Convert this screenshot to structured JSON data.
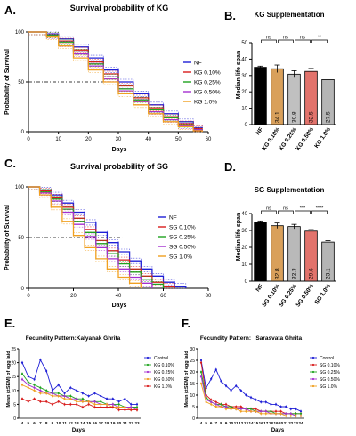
{
  "figure": {
    "background": "#ffffff"
  },
  "chart_data": [
    {
      "id": "A",
      "panel_label": "A.",
      "type": "line",
      "title": "Survival probability of KG",
      "xlabel": "Days",
      "ylabel": "Probability of Survival",
      "xlim": [
        0,
        60
      ],
      "ylim": [
        0,
        100
      ],
      "xticks": [
        "0",
        "10",
        "20",
        "30",
        "40",
        "50",
        "60"
      ],
      "yticks": [
        "0",
        "50",
        "100"
      ],
      "reference_line": 50,
      "legend": "right",
      "series": [
        {
          "name": "NF",
          "color": "#1f1fd6",
          "x": [
            0,
            6,
            10,
            15,
            20,
            25,
            30,
            35,
            40,
            45,
            50,
            55,
            58
          ],
          "y": [
            100,
            98,
            93,
            85,
            74,
            62,
            50,
            38,
            27,
            18,
            10,
            4,
            0
          ]
        },
        {
          "name": "KG 0.10%",
          "color": "#d81b1b",
          "x": [
            0,
            6,
            10,
            15,
            20,
            25,
            30,
            35,
            40,
            45,
            50,
            55,
            58
          ],
          "y": [
            100,
            97,
            91,
            82,
            70,
            58,
            46,
            34,
            24,
            15,
            8,
            3,
            0
          ]
        },
        {
          "name": "KG 0.25%",
          "color": "#1fa31f",
          "x": [
            0,
            6,
            10,
            15,
            20,
            25,
            30,
            35,
            40,
            45,
            50,
            55,
            58
          ],
          "y": [
            100,
            97,
            90,
            80,
            68,
            55,
            43,
            32,
            22,
            14,
            7,
            2,
            0
          ]
        },
        {
          "name": "KG 0.50%",
          "color": "#a42fd0",
          "x": [
            0,
            6,
            10,
            15,
            20,
            25,
            30,
            35,
            40,
            45,
            50,
            55,
            58
          ],
          "y": [
            100,
            96,
            88,
            78,
            66,
            53,
            41,
            30,
            20,
            12,
            6,
            2,
            0
          ]
        },
        {
          "name": "KG 1.0%",
          "color": "#f0a020",
          "x": [
            0,
            6,
            10,
            15,
            20,
            25,
            30,
            35,
            40,
            45,
            50,
            55,
            58
          ],
          "y": [
            100,
            95,
            86,
            74,
            62,
            50,
            38,
            27,
            18,
            10,
            5,
            1,
            0
          ]
        }
      ]
    },
    {
      "id": "B",
      "panel_label": "B.",
      "type": "bar",
      "title": "KG Supplementation",
      "ylabel": "Median life span",
      "ylim": [
        0,
        50
      ],
      "yticks": [
        "0",
        "10",
        "20",
        "30",
        "40",
        "50"
      ],
      "categories": [
        "NF",
        "KG 0.10%",
        "KG 0.25%",
        "KG 0.50%",
        "KG 1.0%"
      ],
      "values": [
        35.0,
        34.1,
        30.8,
        32.5,
        27.5
      ],
      "value_labels": [
        "35.0",
        "34.1",
        "30.8",
        "32.5",
        "27.5"
      ],
      "errors": [
        0.7,
        2.3,
        2.1,
        1.8,
        1.6
      ],
      "colors": [
        "#000000",
        "#d9a05b",
        "#c0c0c0",
        "#e2736c",
        "#b5b5b5"
      ],
      "significance": [
        "ns",
        "ns",
        "ns",
        "**"
      ]
    },
    {
      "id": "C",
      "panel_label": "C.",
      "type": "line",
      "title": "Survival probability of SG",
      "xlabel": "Days",
      "ylabel": "Probability of Survival",
      "xlim": [
        0,
        80
      ],
      "ylim": [
        0,
        100
      ],
      "xticks": [
        "0",
        "20",
        "40",
        "60",
        "80"
      ],
      "yticks": [
        "0",
        "50",
        "100"
      ],
      "reference_line": 50,
      "legend": "right",
      "series": [
        {
          "name": "NF",
          "color": "#1f1fd6",
          "x": [
            0,
            5,
            10,
            15,
            20,
            25,
            30,
            35,
            40,
            45,
            50,
            55,
            60,
            65,
            70
          ],
          "y": [
            100,
            97,
            92,
            84,
            75,
            65,
            55,
            45,
            36,
            27,
            19,
            12,
            6,
            2,
            0
          ]
        },
        {
          "name": "SG 0.10%",
          "color": "#d81b1b",
          "x": [
            0,
            5,
            10,
            15,
            20,
            25,
            30,
            35,
            40,
            45,
            50,
            55,
            60,
            65
          ],
          "y": [
            100,
            96,
            90,
            80,
            69,
            58,
            47,
            37,
            28,
            19,
            12,
            6,
            2,
            0
          ]
        },
        {
          "name": "SG 0.25%",
          "color": "#1fa31f",
          "x": [
            0,
            5,
            10,
            15,
            20,
            25,
            30,
            35,
            40,
            45,
            50,
            55,
            60
          ],
          "y": [
            100,
            95,
            88,
            78,
            66,
            55,
            44,
            34,
            24,
            16,
            9,
            4,
            0
          ]
        },
        {
          "name": "SG 0.50%",
          "color": "#a42fd0",
          "x": [
            0,
            5,
            10,
            15,
            20,
            25,
            30,
            35,
            40,
            45,
            50,
            55
          ],
          "y": [
            100,
            94,
            86,
            75,
            63,
            51,
            40,
            29,
            19,
            11,
            5,
            0
          ]
        },
        {
          "name": "SG 1.0%",
          "color": "#f0a020",
          "x": [
            0,
            5,
            10,
            15,
            20,
            25,
            30,
            35,
            40,
            45,
            50
          ],
          "y": [
            100,
            92,
            80,
            66,
            52,
            40,
            29,
            19,
            11,
            5,
            0
          ]
        }
      ]
    },
    {
      "id": "D",
      "panel_label": "D.",
      "type": "bar",
      "title": "SG Supplementation",
      "ylabel": "Median life span",
      "ylim": [
        0,
        40
      ],
      "yticks": [
        "0",
        "10",
        "20",
        "30",
        "40"
      ],
      "categories": [
        "NF",
        "SG 0.10%",
        "SG 0.25%",
        "SG 0.50%",
        "SG 1.0%"
      ],
      "values": [
        35.0,
        32.8,
        32.3,
        29.6,
        23.1
      ],
      "value_labels": [
        "35.0",
        "32.8",
        "32.3",
        "29.6",
        "23.1"
      ],
      "errors": [
        0.6,
        1.6,
        1.3,
        0.9,
        0.8
      ],
      "colors": [
        "#000000",
        "#d9a05b",
        "#b9b9b9",
        "#e2736c",
        "#b5b5b5"
      ],
      "significance": [
        "ns",
        "ns",
        "***",
        "****"
      ]
    },
    {
      "id": "E",
      "panel_label": "E.",
      "type": "line",
      "title": "Fecundity Pattern:Kalyanak Ghrita",
      "xlabel": "Days",
      "ylabel": "Mean (±SEM) of egg laid",
      "ylim": [
        0,
        25
      ],
      "yticks": [
        "0",
        "5",
        "10",
        "15",
        "20",
        "25"
      ],
      "categories": [
        "4",
        "5",
        "6",
        "7",
        "8",
        "9",
        "10",
        "11",
        "12",
        "13",
        "14",
        "15",
        "16",
        "17",
        "18",
        "19",
        "20",
        "21",
        "22",
        "23"
      ],
      "legend": "right",
      "series": [
        {
          "name": "Control",
          "color": "#1f1fd6",
          "values": [
            20,
            15,
            14,
            21,
            17,
            10,
            12,
            9,
            11,
            10,
            9,
            8,
            9,
            8,
            7,
            7,
            6,
            7,
            5,
            5
          ]
        },
        {
          "name": "KG 0.10%",
          "color": "#1fa31f",
          "values": [
            16,
            13,
            12,
            11,
            10,
            9,
            9,
            8,
            8,
            7,
            7,
            6,
            6,
            6,
            5,
            5,
            5,
            4,
            4,
            4
          ]
        },
        {
          "name": "KG 0.25%",
          "color": "#a42fd0",
          "values": [
            14,
            12,
            11,
            10,
            9,
            9,
            8,
            8,
            7,
            7,
            6,
            6,
            6,
            5,
            5,
            5,
            4,
            4,
            4,
            3
          ]
        },
        {
          "name": "KG 0.50%",
          "color": "#f0a020",
          "values": [
            12,
            11,
            10,
            9,
            9,
            8,
            8,
            7,
            7,
            6,
            6,
            6,
            5,
            5,
            5,
            4,
            4,
            4,
            3,
            3
          ]
        },
        {
          "name": "KG 1.0%",
          "color": "#d81b1b",
          "values": [
            7,
            6,
            7,
            6,
            6,
            5,
            6,
            5,
            5,
            5,
            4,
            5,
            4,
            4,
            4,
            4,
            3,
            3,
            3,
            3
          ]
        }
      ]
    },
    {
      "id": "F",
      "panel_label": "F.",
      "type": "line",
      "title": "Fecundity Pattern:   Sarasvata Ghrita",
      "xlabel": "Days",
      "ylabel": "Mean (±SEM) of egg laid",
      "ylim": [
        0,
        30
      ],
      "yticks": [
        "0",
        "5",
        "10",
        "15",
        "20",
        "25",
        "30"
      ],
      "categories": [
        "4",
        "5",
        "6",
        "7",
        "8",
        "9",
        "10",
        "11",
        "12",
        "13",
        "14",
        "15",
        "16",
        "17",
        "18",
        "19",
        "20",
        "21",
        "22",
        "23",
        "24"
      ],
      "legend": "right",
      "series": [
        {
          "name": "Control",
          "color": "#1f1fd6",
          "values": [
            25,
            13,
            17,
            21,
            16,
            14,
            12,
            14,
            12,
            10,
            9,
            8,
            7,
            7,
            6,
            6,
            5,
            5,
            4,
            4,
            3
          ]
        },
        {
          "name": "SG 0.10%",
          "color": "#d81b1b",
          "values": [
            24,
            10,
            8,
            7,
            6,
            6,
            5,
            5,
            5,
            4,
            4,
            4,
            3,
            3,
            3,
            3,
            3,
            2,
            2,
            2,
            2
          ]
        },
        {
          "name": "SG 0.25%",
          "color": "#1fa31f",
          "values": [
            20,
            9,
            7,
            6,
            6,
            5,
            5,
            4,
            4,
            4,
            4,
            3,
            3,
            3,
            3,
            2,
            2,
            2,
            2,
            2,
            2
          ]
        },
        {
          "name": "SG 0.50%",
          "color": "#a42fd0",
          "values": [
            18,
            8,
            7,
            6,
            5,
            5,
            4,
            4,
            4,
            4,
            3,
            3,
            3,
            3,
            2,
            2,
            2,
            2,
            2,
            1,
            1
          ]
        },
        {
          "name": "SG 1.0%",
          "color": "#f0a020",
          "values": [
            15,
            7,
            6,
            5,
            5,
            4,
            4,
            4,
            3,
            3,
            3,
            3,
            2,
            2,
            2,
            2,
            2,
            1,
            1,
            1,
            1
          ]
        }
      ]
    }
  ]
}
